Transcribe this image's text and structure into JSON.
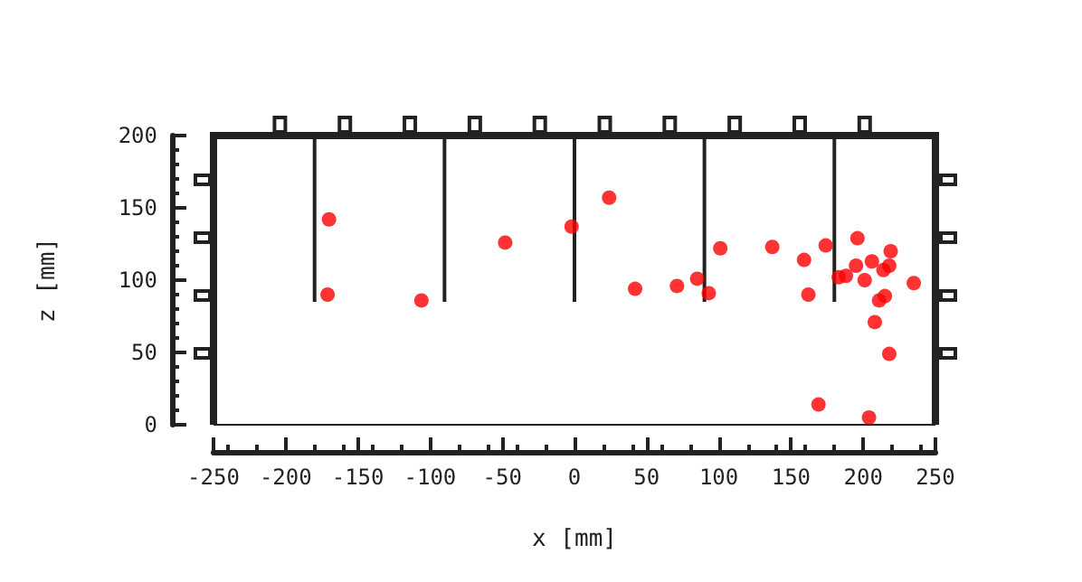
{
  "chart_data": {
    "type": "scatter",
    "xlabel": "x [mm]",
    "ylabel": "z [mm]",
    "xlim": [
      -250,
      250
    ],
    "xticks": [
      -250,
      -200,
      -150,
      -100,
      -50,
      0,
      50,
      100,
      150,
      200,
      250
    ],
    "ylim": [
      0,
      200
    ],
    "yticks": [
      0,
      50,
      100,
      150,
      200
    ],
    "series": [
      {
        "color": "#ff0000",
        "marker": "circle",
        "x": [
          -170,
          -171,
          -106,
          -48,
          -2,
          24,
          42,
          71,
          85,
          93,
          101,
          137,
          159,
          162,
          174,
          169,
          196,
          195,
          206,
          219,
          218,
          214,
          183,
          188,
          201,
          235,
          215,
          211,
          208,
          218,
          204
        ],
        "values": [
          142,
          90,
          86,
          126,
          137,
          157,
          94,
          96,
          101,
          91,
          122,
          123,
          114,
          90,
          124,
          14,
          129,
          110,
          113,
          120,
          110,
          107,
          102,
          103,
          100,
          98,
          89,
          86,
          71,
          49,
          5
        ]
      },
      {
        "type": "line",
        "color": "#222222",
        "marker": "none",
        "x": [
          -180,
          -180
        ],
        "values": [
          85,
          200
        ]
      },
      {
        "type": "line",
        "color": "#222222",
        "marker": "none",
        "x": [
          -90,
          -90
        ],
        "values": [
          85,
          200
        ]
      },
      {
        "type": "line",
        "color": "#222222",
        "marker": "none",
        "x": [
          0,
          0
        ],
        "values": [
          85,
          200
        ]
      },
      {
        "type": "line",
        "color": "#222222",
        "marker": "none",
        "x": [
          90,
          90
        ],
        "values": [
          85,
          200
        ]
      },
      {
        "type": "line",
        "color": "#222222",
        "marker": "none",
        "x": [
          180,
          180
        ],
        "values": [
          85,
          200
        ]
      }
    ]
  }
}
